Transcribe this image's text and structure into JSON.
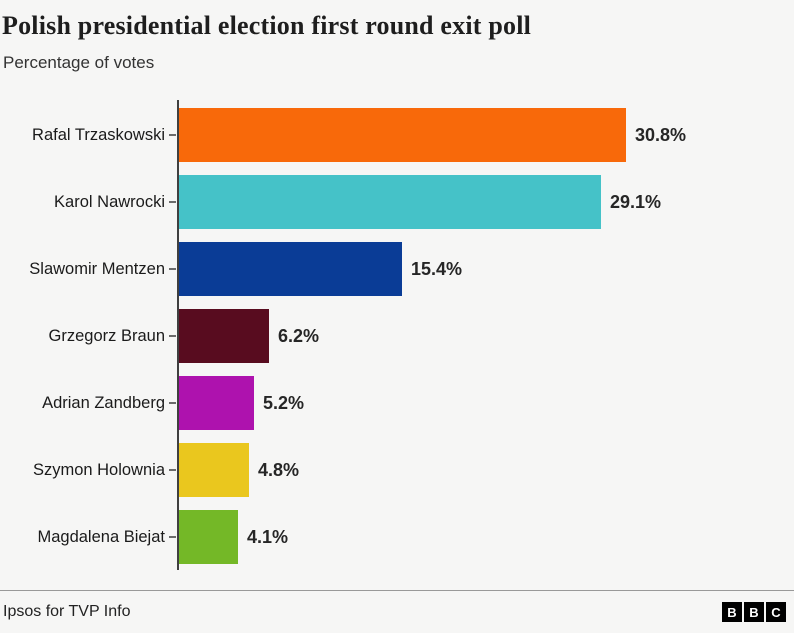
{
  "header": {
    "title": "Polish presidential election first round exit poll",
    "subtitle": "Percentage of votes"
  },
  "chart_data": {
    "type": "bar",
    "orientation": "horizontal",
    "title": "Polish presidential election first round exit poll",
    "subtitle": "Percentage of votes",
    "categories": [
      "Rafal Trzaskowski",
      "Karol Nawrocki",
      "Slawomir Mentzen",
      "Grzegorz Braun",
      "Adrian Zandberg",
      "Szymon Holownia",
      "Magdalena Biejat"
    ],
    "values": [
      30.8,
      29.1,
      15.4,
      6.2,
      5.2,
      4.8,
      4.1
    ],
    "value_labels": [
      "30.8%",
      "29.1%",
      "15.4%",
      "6.2%",
      "5.2%",
      "4.8%",
      "4.1%"
    ],
    "bar_colors": [
      "#F8690A",
      "#45C2C8",
      "#0A3C96",
      "#580C1F",
      "#AE12AE",
      "#EAC71E",
      "#74B827"
    ],
    "xlabel": "",
    "ylabel": "",
    "grid": false,
    "legend": false
  },
  "footer": {
    "source": "Ipsos for TVP Info",
    "logo_blocks": [
      "B",
      "B",
      "C"
    ]
  },
  "colors": {
    "background": "#F6F6F5",
    "title_text": "#1E1E1E",
    "label_text": "#1B1B1B",
    "axis_line": "#3F3F3F",
    "divider": "#999999",
    "logo_bg": "#000000",
    "logo_text": "#FFFFFF"
  }
}
